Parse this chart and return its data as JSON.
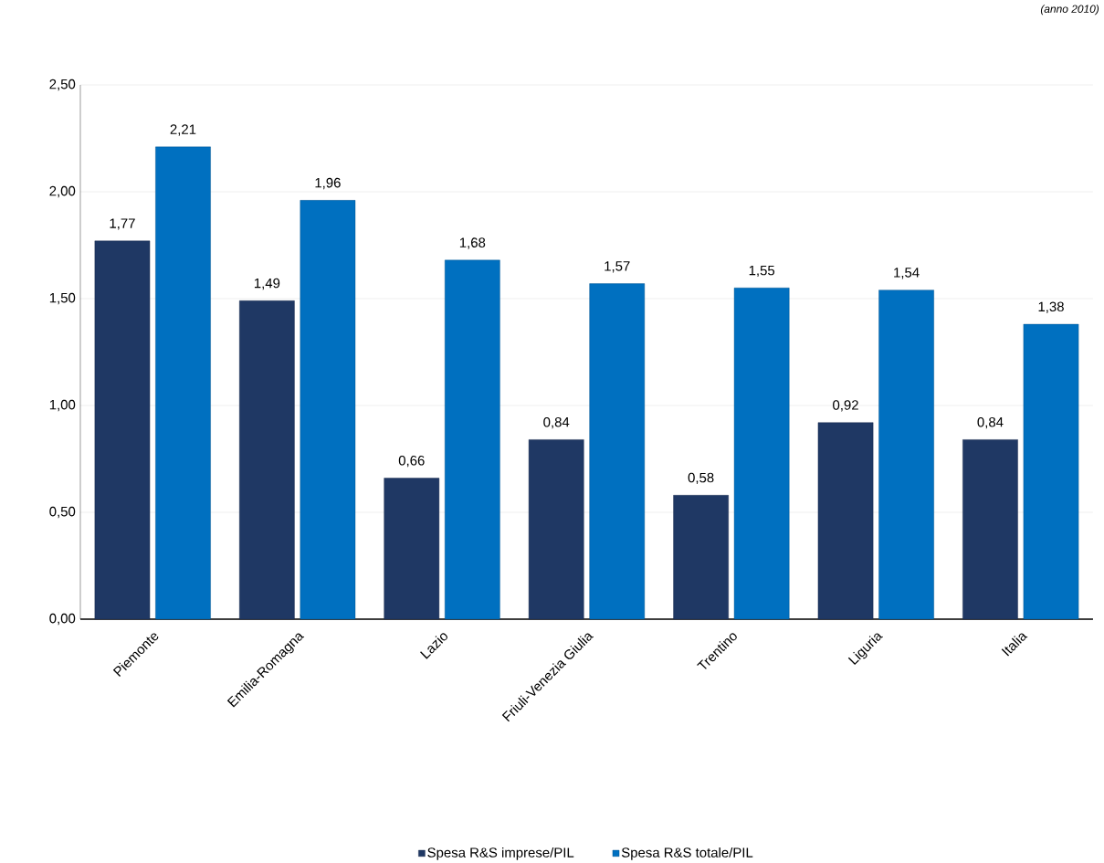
{
  "chart_data": {
    "type": "bar",
    "annotations": [
      "(anno 2010)"
    ],
    "categories": [
      "Piemonte",
      "Emilia-Romagna",
      "Lazio",
      "Friuli-Venezia Giulia",
      "Trentino",
      "Liguria",
      "Italia"
    ],
    "series": [
      {
        "name": "Spesa R&S imprese/PIL",
        "color": "#1f3864",
        "values": [
          1.77,
          1.49,
          0.66,
          0.84,
          0.58,
          0.92,
          0.84
        ],
        "value_labels": [
          "1,77",
          "1,49",
          "0,66",
          "0,84",
          "0,58",
          "0,92",
          "0,84"
        ]
      },
      {
        "name": "Spesa R&S totale/PIL",
        "color": "#0070c0",
        "values": [
          2.21,
          1.96,
          1.68,
          1.57,
          1.55,
          1.54,
          1.38
        ],
        "value_labels": [
          "2,21",
          "1,96",
          "1,68",
          "1,57",
          "1,55",
          "1,54",
          "1,38"
        ]
      }
    ],
    "ylim": [
      0,
      2.5
    ],
    "yticks": [
      {
        "value": 0,
        "label": "0,00"
      },
      {
        "value": 0.5,
        "label": "0,50"
      },
      {
        "value": 1,
        "label": "1,00"
      },
      {
        "value": 1.5,
        "label": "1,50"
      },
      {
        "value": 2,
        "label": "2,00"
      },
      {
        "value": 2.5,
        "label": "2,50"
      }
    ],
    "grid": "y",
    "legend": "bottom"
  }
}
